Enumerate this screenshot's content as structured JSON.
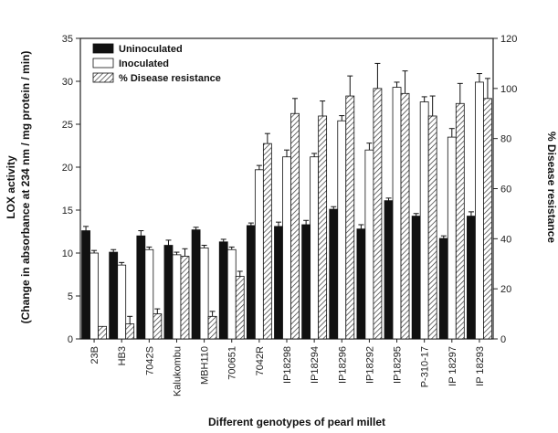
{
  "chart_data": {
    "type": "bar",
    "xlabel": "Different genotypes of pearl millet",
    "ylabel": "LOX activity",
    "ylabel_sub": "(Change in absorbance at 234 nm / mg protein / min)",
    "y2label": "% Disease resistance",
    "ylim": [
      0,
      35
    ],
    "y2lim": [
      0,
      120
    ],
    "yticks": [
      "0",
      "5",
      "10",
      "15",
      "20",
      "25",
      "30",
      "35"
    ],
    "y2ticks": [
      "0",
      "20",
      "40",
      "60",
      "80",
      "100",
      "120"
    ],
    "legend_position": "top-left",
    "grid": false,
    "categories": [
      "23B",
      "HB3",
      "7042S",
      "Kalukombu",
      "MBH110",
      "700651",
      "7042R",
      "IP18298",
      "IP18294",
      "IP18296",
      "IP18292",
      "IP18295",
      "P-310-17",
      "IP 18297",
      "IP 18293"
    ],
    "series": [
      {
        "name": "Uninoculated",
        "axis": "left",
        "fill": "#111111",
        "values": [
          12.6,
          10.1,
          12.0,
          10.9,
          12.7,
          11.3,
          13.2,
          13.1,
          13.3,
          15.1,
          12.8,
          16.1,
          14.3,
          11.7,
          14.3
        ],
        "errors": [
          0.5,
          0.3,
          0.6,
          0.6,
          0.3,
          0.3,
          0.3,
          0.5,
          0.5,
          0.3,
          0.5,
          0.3,
          0.3,
          0.3,
          0.5
        ]
      },
      {
        "name": "Inoculated",
        "axis": "left",
        "fill": "#ffffff",
        "values": [
          10.0,
          8.6,
          10.4,
          9.8,
          10.6,
          10.4,
          19.7,
          21.2,
          21.2,
          25.4,
          22.0,
          29.3,
          27.6,
          23.5,
          29.9
        ],
        "errors": [
          0.3,
          0.3,
          0.3,
          0.3,
          0.3,
          0.3,
          0.5,
          0.8,
          0.4,
          0.6,
          0.8,
          0.6,
          0.6,
          1.0,
          1.0
        ]
      },
      {
        "name": "% Disease resistance",
        "axis": "right",
        "fill": "hatch",
        "values": [
          5,
          6,
          10,
          33,
          9,
          25,
          78,
          90,
          89,
          97,
          100,
          98,
          89,
          94,
          96
        ],
        "errors": [
          0,
          3,
          2,
          3,
          2,
          2,
          4,
          6,
          6,
          8,
          10,
          9,
          8,
          8,
          8
        ]
      }
    ]
  }
}
